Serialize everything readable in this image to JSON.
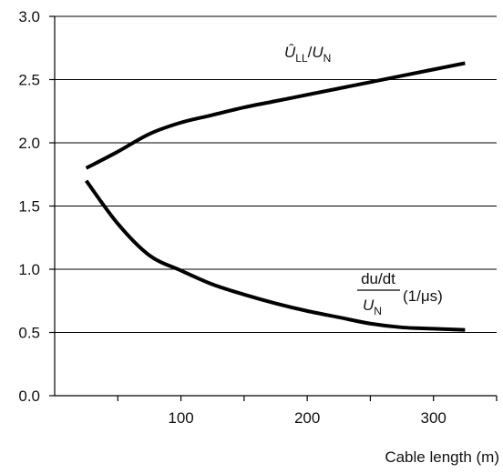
{
  "chart_data": {
    "type": "line",
    "title": "",
    "xlabel": "Cable length (m)",
    "ylabel": "",
    "xlim": [
      0,
      350
    ],
    "ylim": [
      0,
      3.0
    ],
    "x_ticks": [
      100,
      200,
      300
    ],
    "x_minor_ticks": [
      50,
      150,
      250
    ],
    "y_ticks": [
      "0.0",
      "0.5",
      "1.0",
      "1.5",
      "2.0",
      "2.5",
      "3.0"
    ],
    "grid": "horizontal",
    "legend": "none",
    "series": [
      {
        "x": [
          25,
          50,
          75,
          100,
          125,
          150,
          175,
          200,
          225,
          250,
          275,
          300,
          325
        ],
        "values": [
          1.8,
          1.93,
          2.07,
          2.16,
          2.22,
          2.28,
          2.33,
          2.38,
          2.43,
          2.48,
          2.53,
          2.58,
          2.63
        ],
        "color": "#000000"
      },
      {
        "x": [
          25,
          50,
          75,
          100,
          125,
          150,
          175,
          200,
          225,
          250,
          275,
          300,
          325
        ],
        "values": [
          1.7,
          1.36,
          1.11,
          0.99,
          0.88,
          0.8,
          0.73,
          0.67,
          0.62,
          0.57,
          0.54,
          0.53,
          0.52
        ],
        "color": "#000000"
      }
    ],
    "annotations": {
      "upper_curve": {
        "u_hat": "Û",
        "ll_sub": "LL",
        "slash": "/",
        "u": "U",
        "n_sub": "N"
      },
      "lower_curve": {
        "numerator": "du/dt",
        "u": "U",
        "n_sub": "N",
        "unit": "(1/μs)"
      }
    }
  }
}
